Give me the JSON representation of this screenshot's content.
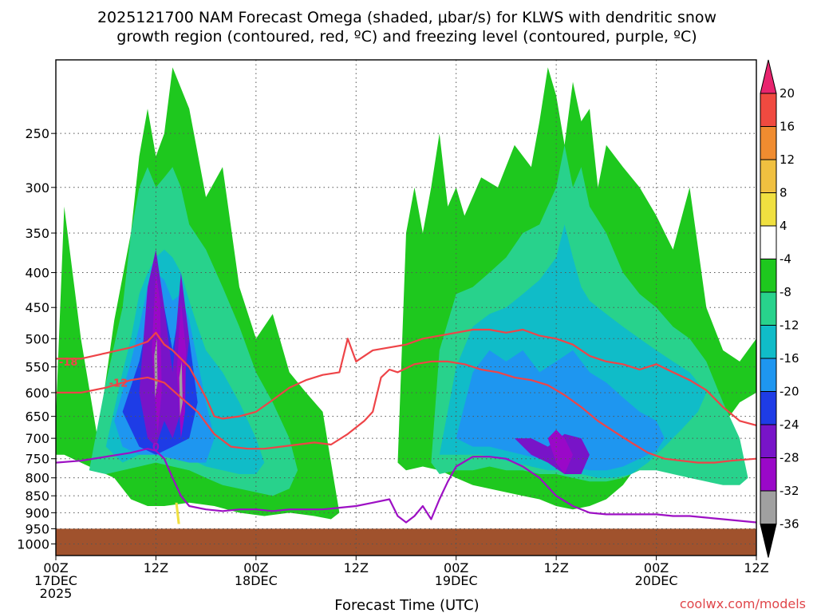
{
  "chart_data": {
    "type": "heatmap",
    "title_line1": "2025121700 NAM Forecast Omega (shaded, μbar/s) for KLWS with dendritic snow",
    "title_line2": "growth region (contoured, red, ºC) and freezing level (contoured, purple, ºC)",
    "xlabel": "Forecast Time (UTC)",
    "credit": "coolwx.com/models",
    "y_axis": {
      "unit": "hPa",
      "ticks": [
        250,
        300,
        350,
        400,
        450,
        500,
        550,
        600,
        650,
        700,
        750,
        800,
        850,
        900,
        950,
        1000
      ],
      "range": [
        1040,
        195
      ]
    },
    "x_axis": {
      "unit": "forecast hours",
      "range": [
        0,
        84
      ],
      "ticks": [
        {
          "h": 0,
          "l1": "00Z",
          "l2": "17DEC",
          "l3": "2025"
        },
        {
          "h": 12,
          "l1": "12Z"
        },
        {
          "h": 24,
          "l1": "00Z",
          "l2": "18DEC"
        },
        {
          "h": 36,
          "l1": "12Z"
        },
        {
          "h": 48,
          "l1": "00Z",
          "l2": "19DEC"
        },
        {
          "h": 60,
          "l1": "12Z"
        },
        {
          "h": 72,
          "l1": "00Z",
          "l2": "20DEC"
        },
        {
          "h": 84,
          "l1": "12Z"
        }
      ]
    },
    "colorbar": {
      "labels": [
        "20",
        "16",
        "12",
        "8",
        "4",
        "-4",
        "-8",
        "-12",
        "-16",
        "-20",
        "-24",
        "-28",
        "-32",
        "-36"
      ],
      "colors": [
        "#e8246e",
        "#f04a40",
        "#f08c30",
        "#f0c040",
        "#f0e040",
        "#ffffff",
        "#1ec81e",
        "#28d28c",
        "#10bcc8",
        "#1e96f0",
        "#1e3ce6",
        "#7814c8",
        "#9a08c8",
        "#a0a0a0",
        "#000000"
      ]
    },
    "ground": {
      "pressure_hpa": 950,
      "color": "#a0522d"
    },
    "omega_regions": [
      {
        "level": -4,
        "x": [
          0,
          1,
          3,
          5,
          7,
          9,
          10,
          11,
          12,
          13,
          14,
          16,
          18,
          20,
          22,
          24,
          26,
          28,
          30,
          32,
          33,
          34,
          33,
          31,
          28,
          25,
          22,
          19,
          16,
          13,
          11,
          9,
          7,
          5,
          3,
          1,
          0
        ],
        "p": [
          650,
          320,
          500,
          700,
          470,
          350,
          270,
          230,
          270,
          250,
          200,
          230,
          310,
          280,
          420,
          500,
          460,
          560,
          600,
          640,
          760,
          900,
          920,
          910,
          900,
          910,
          900,
          880,
          870,
          880,
          880,
          860,
          800,
          780,
          760,
          740,
          740
        ]
      },
      {
        "level": -4,
        "x": [
          41,
          42,
          43,
          44,
          45,
          46,
          47,
          48,
          49,
          51,
          53,
          55,
          57,
          58,
          59,
          60,
          61,
          62,
          63,
          64,
          65,
          66,
          68,
          70,
          72,
          74,
          76,
          78,
          80,
          82,
          84,
          84,
          82,
          80,
          78,
          76,
          74,
          72,
          70,
          68,
          66,
          64,
          62,
          60,
          58,
          56,
          54,
          52,
          50,
          48,
          46,
          44,
          42,
          41
        ],
        "p": [
          760,
          350,
          300,
          350,
          300,
          250,
          320,
          300,
          330,
          290,
          300,
          260,
          280,
          240,
          200,
          220,
          260,
          210,
          240,
          230,
          300,
          260,
          280,
          300,
          330,
          370,
          300,
          450,
          520,
          540,
          500,
          600,
          620,
          670,
          680,
          660,
          640,
          700,
          760,
          820,
          860,
          880,
          890,
          880,
          860,
          850,
          840,
          830,
          820,
          800,
          780,
          770,
          780,
          760
        ]
      },
      {
        "level": -8,
        "x": [
          4,
          6,
          8,
          9,
          10,
          11,
          12,
          13,
          14,
          15,
          16,
          18,
          20,
          22,
          24,
          26,
          28,
          29,
          28,
          26,
          24,
          22,
          20,
          18,
          16,
          14,
          12,
          10,
          8,
          6,
          4
        ],
        "p": [
          780,
          580,
          450,
          350,
          300,
          280,
          300,
          290,
          280,
          300,
          340,
          370,
          420,
          480,
          560,
          620,
          700,
          780,
          830,
          850,
          840,
          830,
          820,
          800,
          780,
          770,
          760,
          770,
          780,
          790,
          780
        ]
      },
      {
        "level": -8,
        "x": [
          45,
          46,
          48,
          50,
          52,
          54,
          56,
          58,
          60,
          61,
          62,
          63,
          64,
          66,
          68,
          70,
          72,
          74,
          76,
          78,
          80,
          82,
          83,
          82,
          80,
          78,
          76,
          74,
          72,
          70,
          68,
          66,
          64,
          62,
          60,
          58,
          56,
          54,
          52,
          50,
          48,
          46,
          45
        ],
        "p": [
          760,
          520,
          430,
          420,
          400,
          380,
          350,
          340,
          300,
          260,
          300,
          280,
          320,
          350,
          400,
          430,
          450,
          480,
          500,
          540,
          620,
          700,
          800,
          820,
          820,
          810,
          800,
          790,
          780,
          780,
          800,
          810,
          810,
          800,
          790,
          790,
          780,
          780,
          770,
          780,
          780,
          790,
          760
        ]
      },
      {
        "level": -12,
        "x": [
          6,
          8,
          9,
          10,
          11,
          12,
          13,
          14,
          15,
          16,
          17,
          18,
          20,
          22,
          24,
          25,
          24,
          22,
          20,
          18,
          16,
          14,
          12,
          10,
          8,
          6
        ],
        "p": [
          720,
          560,
          500,
          430,
          400,
          380,
          370,
          380,
          400,
          440,
          480,
          520,
          560,
          620,
          700,
          760,
          790,
          790,
          780,
          770,
          750,
          740,
          730,
          740,
          760,
          720
        ]
      },
      {
        "level": -12,
        "x": [
          46,
          48,
          50,
          52,
          54,
          56,
          58,
          60,
          61,
          62,
          63,
          64,
          66,
          68,
          70,
          72,
          74,
          76,
          78,
          77,
          75,
          73,
          71,
          69,
          67,
          65,
          63,
          61,
          59,
          57,
          55,
          53,
          51,
          49,
          47,
          46
        ],
        "p": [
          740,
          550,
          480,
          460,
          450,
          430,
          410,
          380,
          340,
          380,
          420,
          440,
          460,
          480,
          500,
          520,
          540,
          560,
          600,
          640,
          680,
          720,
          760,
          790,
          800,
          800,
          790,
          780,
          780,
          770,
          760,
          750,
          740,
          740,
          740,
          740
        ]
      },
      {
        "level": -16,
        "x": [
          7,
          9,
          10,
          11,
          12,
          13,
          14,
          15,
          16,
          17,
          18,
          19,
          18,
          16,
          14,
          12,
          10,
          8,
          7
        ],
        "p": [
          660,
          540,
          480,
          420,
          400,
          410,
          440,
          430,
          470,
          540,
          620,
          700,
          760,
          760,
          750,
          740,
          740,
          720,
          660
        ]
      },
      {
        "level": -16,
        "x": [
          48,
          50,
          52,
          54,
          56,
          58,
          60,
          62,
          64,
          66,
          68,
          70,
          72,
          73,
          72,
          70,
          68,
          66,
          64,
          62,
          60,
          58,
          56,
          54,
          52,
          50,
          48
        ],
        "p": [
          700,
          560,
          520,
          540,
          520,
          560,
          540,
          520,
          560,
          580,
          610,
          640,
          660,
          700,
          730,
          750,
          770,
          780,
          780,
          770,
          760,
          750,
          740,
          730,
          720,
          720,
          700
        ]
      },
      {
        "level": -20,
        "x": [
          8,
          10,
          11,
          12,
          13,
          14,
          15,
          16,
          17,
          16,
          14,
          12,
          10,
          8
        ],
        "p": [
          640,
          540,
          470,
          430,
          450,
          520,
          440,
          500,
          620,
          700,
          720,
          740,
          720,
          640
        ]
      },
      {
        "level": -24,
        "x": [
          10,
          11,
          12,
          13,
          14,
          15,
          16,
          15,
          14,
          13,
          12,
          11,
          10
        ],
        "p": [
          600,
          420,
          370,
          450,
          560,
          400,
          500,
          640,
          700,
          660,
          720,
          700,
          600
        ]
      },
      {
        "level": -24,
        "x": [
          55,
          57,
          59,
          61,
          63,
          64,
          63,
          61,
          59,
          57,
          55
        ],
        "p": [
          700,
          700,
          720,
          690,
          700,
          740,
          790,
          790,
          760,
          740,
          700
        ]
      },
      {
        "level": -28,
        "x": [
          11.5,
          12,
          12.5,
          12.7,
          12.2,
          11.5
        ],
        "p": [
          520,
          400,
          440,
          600,
          690,
          520
        ]
      },
      {
        "level": -28,
        "x": [
          14.5,
          15,
          15.6,
          15.5,
          15,
          14.5
        ],
        "p": [
          560,
          440,
          520,
          640,
          700,
          560
        ]
      },
      {
        "level": -28,
        "x": [
          59,
          60,
          61,
          62,
          61,
          60,
          59
        ],
        "p": [
          700,
          680,
          700,
          740,
          790,
          760,
          700
        ]
      },
      {
        "level": -32,
        "x": [
          11.8,
          12.1,
          12.2,
          11.9,
          11.8
        ],
        "p": [
          530,
          500,
          580,
          610,
          530
        ]
      },
      {
        "level": -32,
        "x": [
          14.8,
          15.1,
          15.2,
          14.9,
          14.8
        ],
        "p": [
          570,
          540,
          620,
          650,
          570
        ]
      },
      {
        "level": 4,
        "x": [
          14.3,
          14.6,
          14.9,
          14.6,
          14.3
        ],
        "p": [
          870,
          870,
          935,
          935,
          870
        ]
      }
    ],
    "red_contours": [
      {
        "label": "-18",
        "label_at": [
          1.5,
          540
        ],
        "x": [
          0,
          3,
          6,
          9,
          11,
          12,
          13,
          14,
          16,
          18,
          19,
          20,
          22,
          24,
          26,
          28,
          30,
          32,
          34,
          35,
          36,
          38,
          40,
          42,
          44,
          46,
          48,
          50,
          52,
          54,
          56,
          58,
          60,
          62,
          64,
          66,
          68,
          70,
          72,
          74,
          76,
          78,
          80,
          82,
          84
        ],
        "p": [
          535,
          535,
          525,
          515,
          505,
          490,
          510,
          520,
          550,
          610,
          650,
          655,
          650,
          640,
          615,
          590,
          575,
          565,
          560,
          500,
          540,
          520,
          515,
          510,
          500,
          495,
          490,
          485,
          485,
          490,
          485,
          495,
          500,
          510,
          530,
          540,
          545,
          555,
          545,
          560,
          575,
          595,
          630,
          660,
          670
        ]
      },
      {
        "label": "-12",
        "label_at": [
          7.5,
          580
        ],
        "x": [
          0,
          3,
          6,
          9,
          11,
          13,
          15,
          17,
          19,
          21,
          23,
          25,
          27,
          29,
          31,
          33,
          35,
          37,
          38,
          39,
          40,
          41,
          43,
          45,
          47,
          49,
          51,
          53,
          55,
          57,
          59,
          61,
          63,
          65,
          67,
          69,
          71,
          73,
          75,
          77,
          79,
          81,
          84
        ],
        "p": [
          600,
          600,
          590,
          575,
          570,
          580,
          610,
          640,
          690,
          720,
          725,
          725,
          720,
          715,
          710,
          715,
          690,
          660,
          640,
          570,
          555,
          560,
          545,
          540,
          540,
          545,
          555,
          560,
          570,
          575,
          585,
          605,
          630,
          660,
          685,
          710,
          735,
          750,
          755,
          760,
          760,
          755,
          750
        ]
      }
    ],
    "purple_contours": [
      {
        "label": "0",
        "label_at": [
          12,
          720
        ],
        "x": [
          0,
          3,
          6,
          9,
          11,
          12,
          13,
          14,
          15,
          16,
          18,
          20,
          22,
          24,
          26,
          28,
          30,
          32,
          34,
          36,
          38,
          40,
          41,
          42,
          43,
          44,
          45,
          46,
          47,
          48,
          50,
          52,
          54,
          56,
          58,
          60,
          62,
          64,
          66,
          68,
          70,
          72,
          74,
          76,
          78,
          80,
          82,
          84
        ],
        "p": [
          760,
          755,
          745,
          735,
          725,
          730,
          750,
          800,
          850,
          880,
          890,
          895,
          890,
          890,
          895,
          890,
          890,
          890,
          885,
          880,
          870,
          860,
          910,
          930,
          910,
          880,
          920,
          860,
          810,
          770,
          745,
          745,
          750,
          770,
          800,
          850,
          880,
          900,
          905,
          905,
          905,
          905,
          910,
          910,
          915,
          920,
          925,
          930
        ]
      }
    ]
  }
}
